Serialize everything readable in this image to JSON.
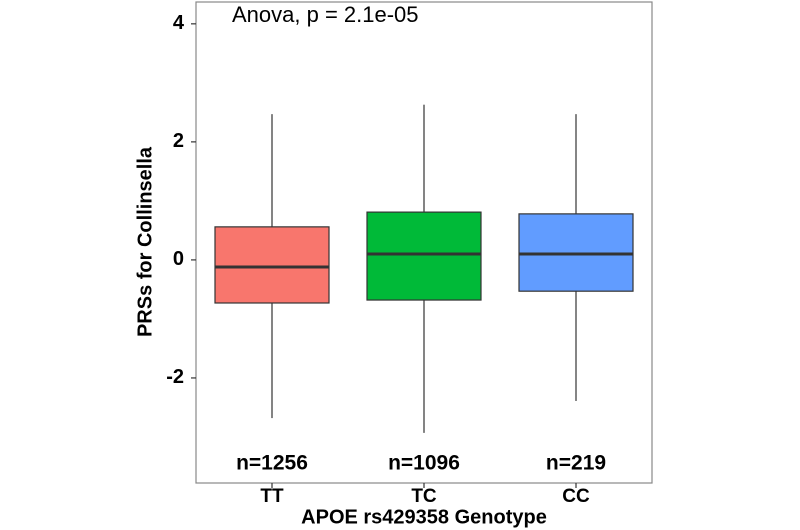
{
  "chart_data": {
    "type": "box",
    "annotation": "Anova, p = 2.1e-05",
    "x_label": "APOE rs429358 Genotype",
    "y_label": "PRSs for Collinsella",
    "categories": [
      "TT",
      "TC",
      "CC"
    ],
    "colors": [
      "#f8766d",
      "#00ba38",
      "#619cff"
    ],
    "count_labels": [
      "n=1256",
      "n=1096",
      "n=219"
    ],
    "values": [
      {
        "low": -2.68,
        "q1": -0.73,
        "median": -0.12,
        "q3": 0.56,
        "high": 2.47
      },
      {
        "low": -2.93,
        "q1": -0.68,
        "median": 0.1,
        "q3": 0.81,
        "high": 2.63
      },
      {
        "low": -2.39,
        "q1": -0.53,
        "median": 0.1,
        "q3": 0.78,
        "high": 2.47
      }
    ],
    "ylim": [
      -3.78,
      4.37
    ],
    "yticks": [
      -2,
      0,
      2,
      4
    ],
    "grid": false
  }
}
